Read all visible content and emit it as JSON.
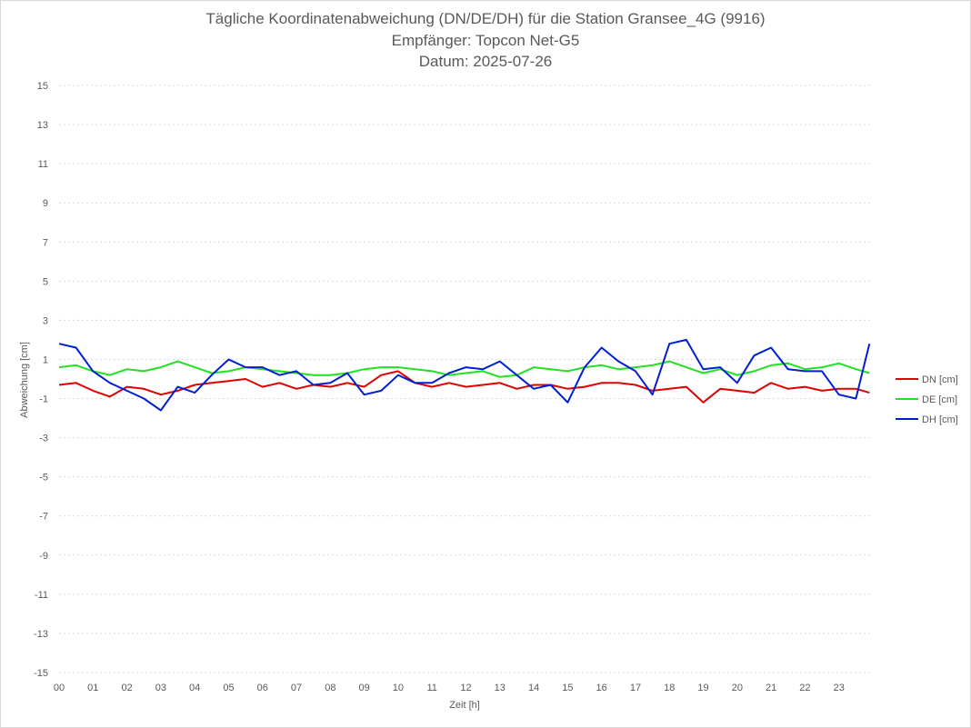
{
  "chart_data": {
    "type": "line",
    "title": "Tägliche Koordinatenabweichung (DN/DE/DH) für die Station Gransee_4G (9916)",
    "subtitle_1": "Empfänger: Topcon Net-G5",
    "subtitle_2": "Datum: 2025-07-26",
    "xlabel": "Zeit [h]",
    "ylabel": "Abweichung [cm]",
    "xlim": [
      0,
      24
    ],
    "ylim": [
      -15,
      15
    ],
    "x_tick_labels": [
      "00",
      "01",
      "02",
      "03",
      "04",
      "05",
      "06",
      "07",
      "08",
      "09",
      "10",
      "11",
      "12",
      "13",
      "14",
      "15",
      "16",
      "17",
      "18",
      "19",
      "20",
      "21",
      "22",
      "23"
    ],
    "y_tick_labels": [
      "15",
      "13",
      "11",
      "9",
      "7",
      "5",
      "3",
      "1",
      "-1",
      "-3",
      "-5",
      "-7",
      "-9",
      "-11",
      "-13",
      "-15"
    ],
    "grid": "horizontal dotted",
    "legend_position": "right",
    "x": [
      0.0,
      0.5,
      1.0,
      1.5,
      2.0,
      2.5,
      3.0,
      3.5,
      4.0,
      4.5,
      5.0,
      5.5,
      6.0,
      6.5,
      7.0,
      7.5,
      8.0,
      8.5,
      9.0,
      9.5,
      10.0,
      10.5,
      11.0,
      11.5,
      12.0,
      12.5,
      13.0,
      13.5,
      14.0,
      14.5,
      15.0,
      15.5,
      16.0,
      16.5,
      17.0,
      17.5,
      18.0,
      18.5,
      19.0,
      19.5,
      20.0,
      20.5,
      21.0,
      21.5,
      22.0,
      22.5,
      23.0,
      23.5,
      23.9
    ],
    "series": [
      {
        "name": "DN [cm]",
        "color": "#e00000",
        "values": [
          -0.3,
          -0.2,
          -0.6,
          -0.9,
          -0.4,
          -0.5,
          -0.8,
          -0.6,
          -0.3,
          -0.2,
          -0.1,
          0.0,
          -0.4,
          -0.2,
          -0.5,
          -0.3,
          -0.4,
          -0.2,
          -0.4,
          0.2,
          0.4,
          -0.2,
          -0.4,
          -0.2,
          -0.4,
          -0.3,
          -0.2,
          -0.5,
          -0.3,
          -0.3,
          -0.5,
          -0.4,
          -0.2,
          -0.2,
          -0.3,
          -0.6,
          -0.5,
          -0.4,
          -1.2,
          -0.5,
          -0.6,
          -0.7,
          -0.2,
          -0.5,
          -0.4,
          -0.6,
          -0.5,
          -0.5,
          -0.7
        ]
      },
      {
        "name": "DE [cm]",
        "color": "#22e022",
        "values": [
          0.6,
          0.7,
          0.4,
          0.2,
          0.5,
          0.4,
          0.6,
          0.9,
          0.6,
          0.3,
          0.4,
          0.6,
          0.5,
          0.4,
          0.3,
          0.2,
          0.2,
          0.3,
          0.5,
          0.6,
          0.6,
          0.5,
          0.4,
          0.2,
          0.3,
          0.4,
          0.1,
          0.2,
          0.6,
          0.5,
          0.4,
          0.6,
          0.7,
          0.5,
          0.6,
          0.7,
          0.9,
          0.6,
          0.3,
          0.5,
          0.2,
          0.4,
          0.7,
          0.8,
          0.5,
          0.6,
          0.8,
          0.5,
          0.3
        ]
      },
      {
        "name": "DH [cm]",
        "color": "#0020d0",
        "values": [
          1.8,
          1.6,
          0.4,
          -0.2,
          -0.6,
          -1.0,
          -1.6,
          -0.4,
          -0.7,
          0.2,
          1.0,
          0.6,
          0.6,
          0.2,
          0.4,
          -0.3,
          -0.2,
          0.3,
          -0.8,
          -0.6,
          0.2,
          -0.2,
          -0.2,
          0.3,
          0.6,
          0.5,
          0.9,
          0.2,
          -0.5,
          -0.3,
          -1.2,
          0.6,
          1.6,
          0.9,
          0.4,
          -0.8,
          1.8,
          2.0,
          0.5,
          0.6,
          -0.2,
          1.2,
          1.6,
          0.5,
          0.4,
          0.4,
          -0.8,
          -1.0,
          1.8
        ]
      }
    ]
  },
  "colors": {
    "grid": "#d9d9d9",
    "text": "#595959"
  }
}
